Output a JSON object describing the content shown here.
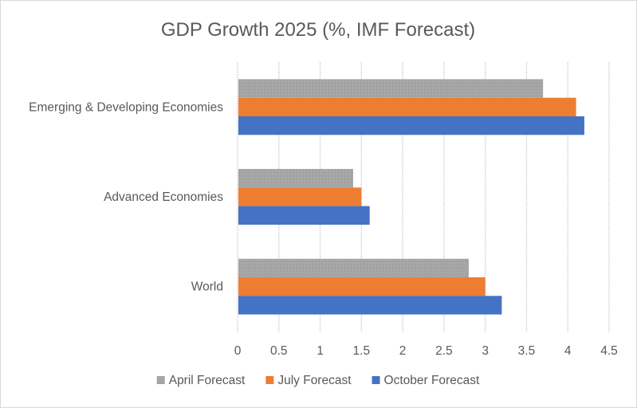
{
  "chart_data": {
    "type": "bar",
    "orientation": "horizontal",
    "title": "GDP Growth 2025 (%, IMF Forecast)",
    "xlabel": "",
    "ylabel": "",
    "categories": [
      "World",
      "Advanced Economies",
      "Emerging & Developing Economies"
    ],
    "series": [
      {
        "name": "April Forecast",
        "color": "#a5a5a5",
        "values": [
          2.8,
          1.4,
          3.7
        ]
      },
      {
        "name": "July Forecast",
        "color": "#ed7d31",
        "values": [
          3.0,
          1.5,
          4.1
        ]
      },
      {
        "name": "October Forecast",
        "color": "#4472c4",
        "values": [
          3.2,
          1.6,
          4.2
        ]
      }
    ],
    "xlim": [
      0,
      4.5
    ],
    "xticks": [
      "0",
      "0.5",
      "1",
      "1.5",
      "2",
      "2.5",
      "3",
      "3.5",
      "4",
      "4.5"
    ],
    "xtick_values": [
      0,
      0.5,
      1,
      1.5,
      2,
      2.5,
      3,
      3.5,
      4,
      4.5
    ],
    "grid": true,
    "legend_position": "bottom"
  }
}
